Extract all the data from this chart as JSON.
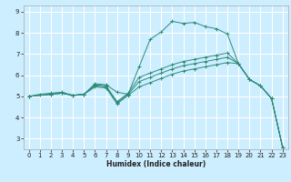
{
  "xlabel": "Humidex (Indice chaleur)",
  "bg_color": "#cceeff",
  "grid_color": "#ffffff",
  "line_color": "#2e8b7a",
  "xlim": [
    -0.5,
    23.5
  ],
  "ylim": [
    2.5,
    9.3
  ],
  "xticks": [
    0,
    1,
    2,
    3,
    4,
    5,
    6,
    7,
    8,
    9,
    10,
    11,
    12,
    13,
    14,
    15,
    16,
    17,
    18,
    19,
    20,
    21,
    22,
    23
  ],
  "yticks": [
    3,
    4,
    5,
    6,
    7,
    8,
    9
  ],
  "lines": [
    {
      "x": [
        0,
        1,
        2,
        3,
        4,
        5,
        6,
        7,
        8,
        9,
        10,
        11,
        12,
        13,
        14,
        15,
        16,
        17,
        18,
        19,
        20,
        21,
        22,
        23
      ],
      "y": [
        5.0,
        5.1,
        5.15,
        5.2,
        5.05,
        5.1,
        5.6,
        5.55,
        5.2,
        5.1,
        6.4,
        7.7,
        8.05,
        8.55,
        8.45,
        8.5,
        8.3,
        8.2,
        7.95,
        6.55,
        5.8,
        5.5,
        4.9,
        2.6
      ]
    },
    {
      "x": [
        0,
        2,
        3,
        4,
        5,
        6,
        7,
        8,
        9,
        10,
        11,
        12,
        13,
        14,
        15,
        16,
        17,
        18,
        19,
        20,
        21,
        22,
        23
      ],
      "y": [
        5.0,
        5.1,
        5.15,
        5.05,
        5.1,
        5.55,
        5.5,
        4.75,
        5.15,
        5.9,
        6.1,
        6.3,
        6.5,
        6.65,
        6.75,
        6.85,
        6.95,
        7.05,
        6.55,
        5.8,
        5.5,
        4.9,
        2.6
      ]
    },
    {
      "x": [
        0,
        2,
        3,
        4,
        5,
        6,
        7,
        8,
        9,
        10,
        11,
        12,
        13,
        14,
        15,
        16,
        17,
        18,
        19,
        20,
        21,
        22,
        23
      ],
      "y": [
        5.0,
        5.1,
        5.15,
        5.05,
        5.1,
        5.5,
        5.45,
        4.7,
        5.1,
        5.7,
        5.9,
        6.1,
        6.3,
        6.45,
        6.55,
        6.65,
        6.75,
        6.85,
        6.55,
        5.8,
        5.5,
        4.9,
        2.6
      ]
    },
    {
      "x": [
        0,
        2,
        3,
        4,
        5,
        6,
        7,
        8,
        9,
        10,
        11,
        12,
        13,
        14,
        15,
        16,
        17,
        18,
        19,
        20,
        21,
        22,
        23
      ],
      "y": [
        5.0,
        5.1,
        5.15,
        5.05,
        5.1,
        5.45,
        5.4,
        4.65,
        5.05,
        5.45,
        5.65,
        5.85,
        6.05,
        6.2,
        6.3,
        6.4,
        6.5,
        6.6,
        6.55,
        5.8,
        5.5,
        4.9,
        2.6
      ]
    }
  ]
}
